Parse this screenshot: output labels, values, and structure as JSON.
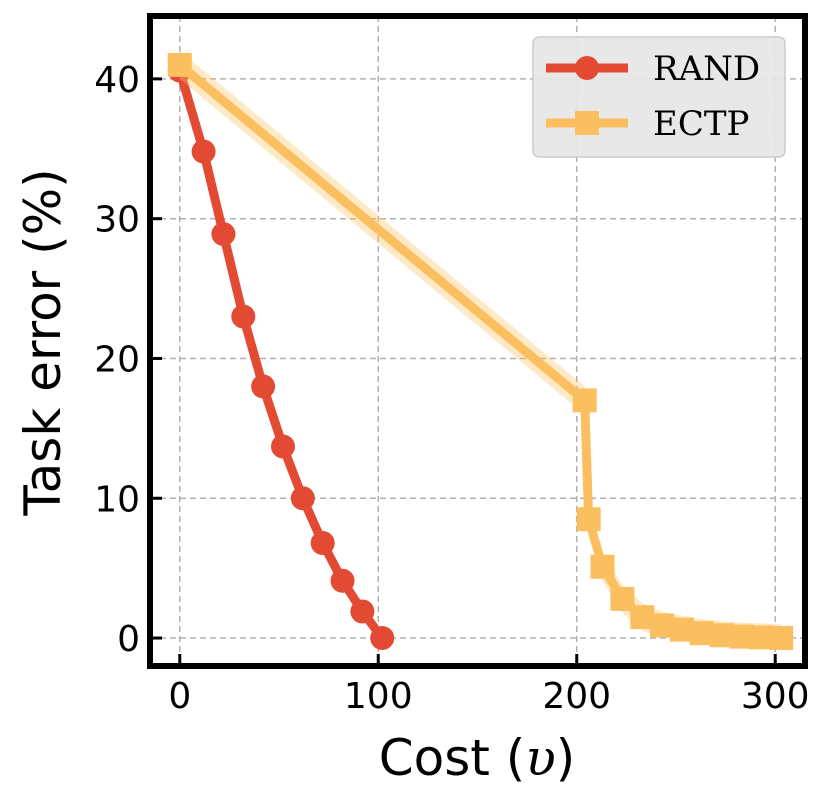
{
  "chart_data": {
    "type": "line",
    "xlabel_text": "Cost (",
    "xlabel_symbol": "υ",
    "xlabel_close": ")",
    "ylabel": "Task error (%)",
    "xlim": [
      -15,
      315
    ],
    "ylim": [
      -2,
      44.5
    ],
    "xticks": [
      0,
      100,
      200,
      300
    ],
    "yticks": [
      0,
      10,
      20,
      30,
      40
    ],
    "grid": true,
    "legend_position": "top-right",
    "series": [
      {
        "name": "RAND",
        "color": "#e34a33",
        "marker": "circle",
        "x": [
          0,
          12,
          22,
          32,
          42,
          52,
          62,
          72,
          82,
          92,
          102
        ],
        "y": [
          40.6,
          34.8,
          28.9,
          23.0,
          18.0,
          13.7,
          10.0,
          6.8,
          4.1,
          1.9,
          0.0
        ]
      },
      {
        "name": "ECTP",
        "color": "#fbbf5f",
        "marker": "square",
        "band": 1.0,
        "x": [
          0,
          204,
          206,
          213,
          223,
          233,
          243,
          253,
          263,
          273,
          283,
          293,
          303
        ],
        "y": [
          41.0,
          17.0,
          8.5,
          5.1,
          2.8,
          1.5,
          0.9,
          0.6,
          0.35,
          0.2,
          0.1,
          0.05,
          0.0
        ]
      }
    ]
  }
}
